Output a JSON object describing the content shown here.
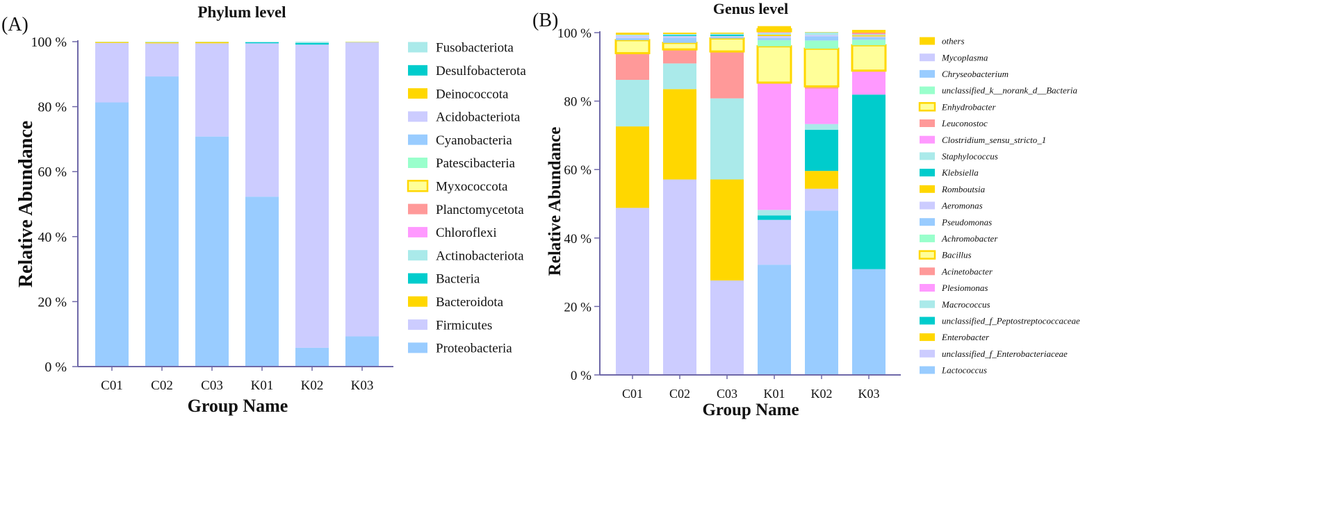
{
  "chart_data": [
    {
      "type": "bar",
      "stacked": true,
      "panel_label": "(A)",
      "title": "Phylum level",
      "xlabel": "Group Name",
      "ylabel": "Relative Abundance",
      "ylim": [
        0,
        100
      ],
      "y_ticks": [
        "0 %",
        "20 %",
        "40 %",
        "60 %",
        "80 %",
        "100 %"
      ],
      "categories": [
        "C01",
        "C02",
        "C03",
        "K01",
        "K02",
        "K03"
      ],
      "series": [
        {
          "name": "Proteobacteria",
          "color": "#99ccff",
          "values": [
            81.3,
            89.3,
            70.8,
            52.3,
            5.8,
            9.3
          ]
        },
        {
          "name": "Firmicutes",
          "color": "#ccccff",
          "values": [
            18.3,
            10.2,
            28.7,
            47.2,
            93.3,
            90.5
          ]
        },
        {
          "name": "Bacteroidota",
          "color": "#ffd700",
          "values": [
            0,
            0,
            0,
            0,
            0,
            0
          ]
        },
        {
          "name": "Bacteria",
          "color": "#00cccc",
          "values": [
            0,
            0,
            0,
            0,
            0,
            0
          ]
        },
        {
          "name": "Actinobacteriota",
          "color": "#aaeaea",
          "values": [
            0,
            0,
            0,
            0,
            0,
            0
          ]
        },
        {
          "name": "Chloroflexi",
          "color": "#ff99ff",
          "values": [
            0,
            0,
            0,
            0,
            0,
            0
          ]
        },
        {
          "name": "Planctomycetota",
          "color": "#ff9999",
          "values": [
            0,
            0,
            0,
            0,
            0,
            0
          ]
        },
        {
          "name": "Myxococcota",
          "color": "#ffff99",
          "outline": "#ffd700",
          "values": [
            0,
            0,
            0,
            0,
            0,
            0
          ]
        },
        {
          "name": "Patescibacteria",
          "color": "#99ffcc",
          "values": [
            0,
            0,
            0,
            0,
            0,
            0
          ]
        },
        {
          "name": "Cyanobacteria",
          "color": "#99ccff",
          "values": [
            0,
            0,
            0,
            0,
            0,
            0
          ]
        },
        {
          "name": "Acidobacteriota",
          "color": "#ccccff",
          "values": [
            0,
            0,
            0,
            0,
            0,
            0
          ]
        },
        {
          "name": "Deinococcota",
          "color": "#ffd700",
          "values": [
            0.3,
            0.3,
            0.4,
            0,
            0,
            0.1
          ]
        },
        {
          "name": "Desulfobacterota",
          "color": "#00cccc",
          "values": [
            0,
            0,
            0,
            0.3,
            0.5,
            0
          ]
        },
        {
          "name": "Fusobacteriota",
          "color": "#aaeaea",
          "values": [
            0.1,
            0.2,
            0.1,
            0.2,
            0.4,
            0.1
          ]
        }
      ]
    },
    {
      "type": "bar",
      "stacked": true,
      "panel_label": "(B)",
      "title": "Genus level",
      "xlabel": "Group Name",
      "ylabel": "Relative Abundance",
      "ylim": [
        0,
        100
      ],
      "y_ticks": [
        "0 %",
        "20 %",
        "40 %",
        "60 %",
        "80 %",
        "100 %"
      ],
      "categories": [
        "C01",
        "C02",
        "C03",
        "K01",
        "K02",
        "K03"
      ],
      "series": [
        {
          "name": "Lactococcus",
          "color": "#99ccff",
          "values": [
            0,
            0,
            0,
            32.2,
            48.0,
            30.9
          ]
        },
        {
          "name": "unclassified_f_Enterobacteriaceae",
          "color": "#ccccff",
          "values": [
            48.8,
            57.1,
            27.6,
            13.1,
            6.4,
            0
          ]
        },
        {
          "name": "Enterobacter",
          "color": "#ffd700",
          "values": [
            23.8,
            26.4,
            29.5,
            0,
            5.2,
            0
          ]
        },
        {
          "name": "unclassified_f_Peptostreptococcaceae",
          "color": "#00cccc",
          "values": [
            0,
            0,
            0,
            1.3,
            12.0,
            51.0
          ]
        },
        {
          "name": "Macrococcus",
          "color": "#aaeaea",
          "values": [
            13.6,
            7.5,
            23.7,
            1.6,
            1.7,
            0
          ]
        },
        {
          "name": "Plesiomonas",
          "color": "#ff99ff",
          "values": [
            0,
            0,
            0,
            37.2,
            10.3,
            7.0
          ]
        },
        {
          "name": "Acinetobacter",
          "color": "#ff9999",
          "values": [
            7.8,
            4.1,
            13.7,
            0,
            0.7,
            0
          ]
        },
        {
          "name": "Bacillus",
          "color": "#ffff99",
          "outline": "#ffd700",
          "values": [
            3.8,
            1.9,
            3.8,
            10.6,
            11.0,
            7.4
          ]
        },
        {
          "name": "Achromobacter",
          "color": "#99ffcc",
          "values": [
            0,
            0,
            0,
            1.8,
            2.4,
            1.6
          ]
        },
        {
          "name": "Pseudomonas",
          "color": "#99ccff",
          "values": [
            0.6,
            1.5,
            0.4,
            0.6,
            1.2,
            0.7
          ]
        },
        {
          "name": "Aeromonas",
          "color": "#ccccff",
          "values": [
            0.7,
            0.5,
            0.3,
            0.6,
            0.4,
            0.3
          ]
        },
        {
          "name": "Romboutsia",
          "color": "#ffd700",
          "values": [
            0,
            0,
            0,
            0.4,
            0,
            0.3
          ]
        },
        {
          "name": "Klebsiella",
          "color": "#00cccc",
          "values": [
            0,
            0.3,
            0.4,
            0,
            0,
            0
          ]
        },
        {
          "name": "Staphylococcus",
          "color": "#aaeaea",
          "values": [
            0.3,
            0.3,
            0.3,
            0.5,
            0.8,
            0.3
          ]
        },
        {
          "name": "Clostridium_sensu_stricto_1",
          "color": "#ff99ff",
          "values": [
            0,
            0,
            0,
            0.5,
            0,
            0
          ]
        },
        {
          "name": "Leuconostoc",
          "color": "#ff9999",
          "values": [
            0,
            0,
            0,
            0,
            0,
            0.5
          ]
        },
        {
          "name": "Enhydrobacter",
          "color": "#ffff99",
          "outline": "#ffd700",
          "values": [
            0,
            0,
            0,
            0.6,
            0,
            0
          ]
        },
        {
          "name": "unclassified_k__norank_d__Bacteria",
          "color": "#99ffcc",
          "values": [
            0,
            0,
            0,
            0,
            0,
            0
          ]
        },
        {
          "name": "Chryseobacterium",
          "color": "#99ccff",
          "values": [
            0,
            0,
            0,
            0,
            0,
            0
          ]
        },
        {
          "name": "Mycoplasma",
          "color": "#ccccff",
          "values": [
            0,
            0,
            0,
            0,
            0,
            0
          ]
        },
        {
          "name": "others",
          "color": "#ffd700",
          "values": [
            0.6,
            0.4,
            0.3,
            0.9,
            0.1,
            0.8
          ]
        }
      ]
    }
  ]
}
